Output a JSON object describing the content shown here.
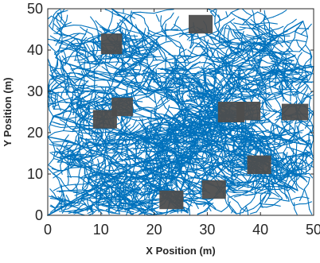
{
  "chart_data": {
    "type": "scatter",
    "title": "",
    "xlabel": "X Position (m)",
    "ylabel": "Y Position (m)",
    "xlim": [
      0,
      50
    ],
    "ylim": [
      0,
      50
    ],
    "xticks": [
      "0",
      "10",
      "20",
      "30",
      "40",
      "50"
    ],
    "yticks": [
      "0",
      "10",
      "20",
      "30",
      "40",
      "50"
    ],
    "grid": false,
    "tree_color": "#0072BD",
    "obstacle_color": "#4D4D4D",
    "obstacles": [
      {
        "x": [
          10,
          14
        ],
        "y": [
          39,
          44
        ]
      },
      {
        "x": [
          26.5,
          31
        ],
        "y": [
          44,
          48.5
        ]
      },
      {
        "x": [
          12,
          16
        ],
        "y": [
          24,
          28.5
        ]
      },
      {
        "x": [
          8.5,
          13
        ],
        "y": [
          21,
          25.5
        ]
      },
      {
        "x": [
          32,
          37
        ],
        "y": [
          22.5,
          27.5
        ]
      },
      {
        "x": [
          35.5,
          40
        ],
        "y": [
          23,
          27.5
        ]
      },
      {
        "x": [
          44,
          49
        ],
        "y": [
          23,
          27
        ]
      },
      {
        "x": [
          37.5,
          42
        ],
        "y": [
          10,
          14.5
        ]
      },
      {
        "x": [
          29,
          33.5
        ],
        "y": [
          4,
          8.5
        ]
      },
      {
        "x": [
          21,
          25.5
        ],
        "y": [
          1.5,
          6
        ]
      }
    ],
    "trunk_paths": [
      [
        [
          0,
          0
        ],
        [
          8,
          6
        ],
        [
          15,
          11
        ],
        [
          22,
          16
        ],
        [
          27,
          20
        ],
        [
          29,
          23
        ],
        [
          31,
          28
        ],
        [
          33,
          31
        ],
        [
          36,
          33
        ],
        [
          40,
          34
        ],
        [
          45,
          35
        ],
        [
          50,
          36
        ]
      ],
      [
        [
          0,
          0
        ],
        [
          6,
          4
        ],
        [
          12,
          7
        ],
        [
          19,
          10
        ],
        [
          25,
          14
        ],
        [
          28,
          18
        ]
      ],
      [
        [
          28,
          18
        ],
        [
          27,
          14
        ],
        [
          26,
          10
        ],
        [
          25,
          6
        ],
        [
          24,
          3
        ]
      ],
      [
        [
          29,
          23
        ],
        [
          25,
          27
        ],
        [
          20,
          30
        ],
        [
          14,
          32
        ],
        [
          8,
          35
        ],
        [
          3,
          37
        ]
      ],
      [
        [
          31,
          28
        ],
        [
          28,
          33
        ],
        [
          24,
          38
        ],
        [
          20,
          42
        ],
        [
          16,
          46
        ],
        [
          12,
          50
        ]
      ],
      [
        [
          33,
          31
        ],
        [
          36,
          36
        ],
        [
          40,
          40
        ],
        [
          44,
          44
        ],
        [
          48,
          47
        ]
      ],
      [
        [
          27,
          20
        ],
        [
          31,
          18
        ],
        [
          35,
          15
        ],
        [
          39,
          12
        ],
        [
          43,
          9
        ],
        [
          47,
          6
        ]
      ],
      [
        [
          29,
          23
        ],
        [
          33,
          21
        ],
        [
          37,
          20
        ],
        [
          41,
          19
        ],
        [
          45,
          18
        ],
        [
          49,
          17
        ]
      ],
      [
        [
          22,
          16
        ],
        [
          17,
          19
        ],
        [
          12,
          21
        ],
        [
          6,
          22
        ],
        [
          1,
          24
        ]
      ],
      [
        [
          15,
          11
        ],
        [
          12,
          14
        ],
        [
          8,
          16
        ],
        [
          4,
          18
        ],
        [
          0,
          19
        ]
      ]
    ]
  }
}
